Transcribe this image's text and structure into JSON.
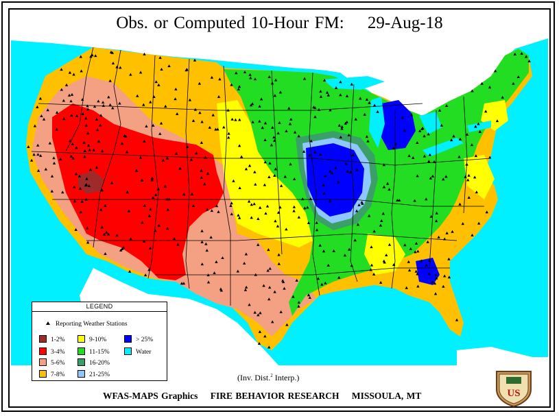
{
  "title": "Obs. or Computed 10-Hour FM:",
  "date": "29-Aug-18",
  "legend": {
    "title": "LEGEND",
    "stations_label": "Reporting Weather Stations",
    "items": [
      {
        "label": "1-2%",
        "color": "#9e2a2a"
      },
      {
        "label": "3-4%",
        "color": "#ff0000"
      },
      {
        "label": "5-6%",
        "color": "#f4a082"
      },
      {
        "label": "7-8%",
        "color": "#ffc000"
      },
      {
        "label": "9-10%",
        "color": "#ffff00"
      },
      {
        "label": "11-15%",
        "color": "#22dd22"
      },
      {
        "label": "16-20%",
        "color": "#3aa068"
      },
      {
        "label": "21-25%",
        "color": "#8ec8ff"
      },
      {
        "label": "> 25%",
        "color": "#0000ff"
      },
      {
        "label": "Water",
        "color": "#00f0ff"
      }
    ]
  },
  "interp_label": "(Inv. Dist.",
  "interp_power": "2",
  "interp_suffix": "Interp.)",
  "footer": {
    "left": "WFAS-MAPS Graphics",
    "middle": "FIRE BEHAVIOR RESEARCH",
    "right": "MISSOULA, MT"
  },
  "shield_text": "US",
  "colors": {
    "water": "#00f0ff",
    "background": "#ffffff",
    "border": "#000000"
  }
}
